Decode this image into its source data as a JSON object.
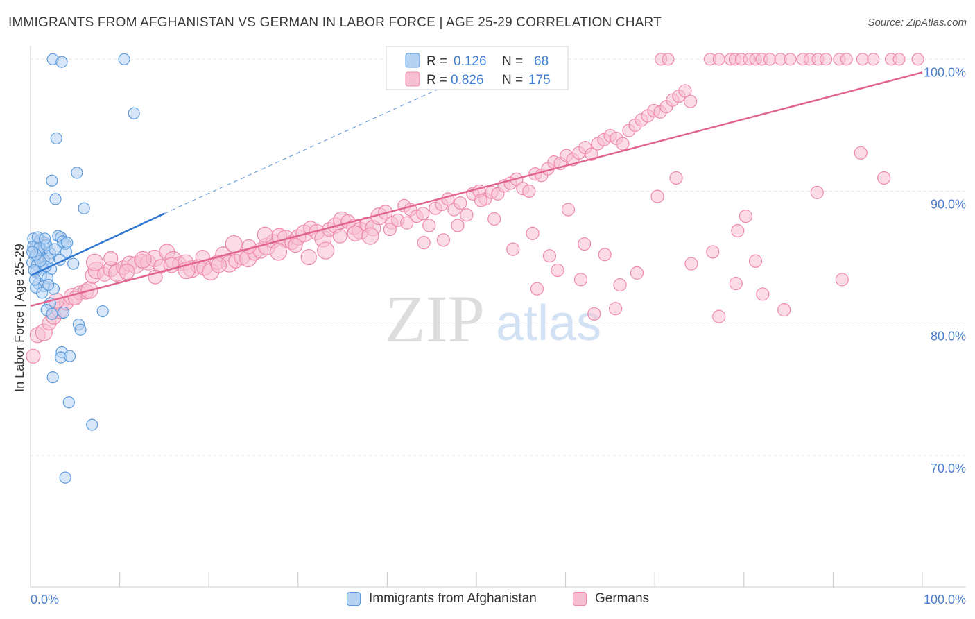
{
  "header": {
    "title": "IMMIGRANTS FROM AFGHANISTAN VS GERMAN IN LABOR FORCE | AGE 25-29 CORRELATION CHART",
    "source": "Source: ZipAtlas.com"
  },
  "watermark": {
    "zip": "ZIP",
    "atlas": "atlas"
  },
  "colors": {
    "blue": "#5b9bdc",
    "blue_fill": "#b6d2f3",
    "blue_line": "#2f76d0",
    "pink": "#ee89a9",
    "pink_fill": "#f7c0d2",
    "pink_line": "#e0648f",
    "tick_label": "#4a7fce",
    "grid": "#e4e4e4"
  },
  "chart_data": {
    "type": "scatter",
    "title": "IMMIGRANTS FROM AFGHANISTAN VS GERMAN IN LABOR FORCE | AGE 25-29 CORRELATION CHART",
    "ylabel": "In Labor Force | Age 25-29",
    "xlabel": "",
    "xlim": [
      0,
      100
    ],
    "ylim": [
      60,
      100.7
    ],
    "x_tick_labels": [
      "0.0%",
      "100.0%"
    ],
    "y_ticks": [
      70,
      80,
      90,
      100
    ],
    "y_tick_labels": [
      "70.0%",
      "80.0%",
      "90.0%",
      "100.0%"
    ],
    "grid": true,
    "legend_position": "top-center",
    "legend": [
      {
        "r_label": "R =",
        "r_value": "0.126",
        "n_label": "N =",
        "n_value": "68"
      },
      {
        "r_label": "R =",
        "r_value": "0.826",
        "n_label": "N =",
        "n_value": "175"
      }
    ],
    "series": [
      {
        "name": "Immigrants from Afghanistan",
        "color": "#5b9bdc",
        "trend": {
          "x": [
            0,
            15,
            100
          ],
          "y": [
            83.6,
            88.3,
            114.4
          ],
          "solid_until": 15
        },
        "points": [
          [
            2.5,
            100
          ],
          [
            3.5,
            99.8
          ],
          [
            10.5,
            100
          ],
          [
            11.6,
            95.9
          ],
          [
            2.9,
            94.0
          ],
          [
            5.2,
            91.4
          ],
          [
            2.4,
            90.8
          ],
          [
            2.8,
            89.4
          ],
          [
            6.0,
            88.7
          ],
          [
            0.3,
            86.4
          ],
          [
            0.8,
            86.0
          ],
          [
            1.1,
            86.3
          ],
          [
            1.6,
            86.1
          ],
          [
            3.1,
            86.6
          ],
          [
            3.4,
            86.5
          ],
          [
            3.6,
            86.2
          ],
          [
            3.9,
            86.0
          ],
          [
            0.4,
            85.6
          ],
          [
            1.0,
            85.4
          ],
          [
            1.3,
            85.5
          ],
          [
            2.2,
            85.3
          ],
          [
            4.0,
            85.4
          ],
          [
            0.5,
            85.1
          ],
          [
            0.9,
            85.0
          ],
          [
            1.5,
            84.8
          ],
          [
            2.0,
            84.9
          ],
          [
            0.2,
            84.6
          ],
          [
            0.7,
            84.4
          ],
          [
            1.4,
            84.2
          ],
          [
            2.3,
            84.1
          ],
          [
            4.8,
            84.5
          ],
          [
            0.6,
            83.9
          ],
          [
            1.2,
            83.6
          ],
          [
            1.9,
            83.4
          ],
          [
            0.9,
            83.0
          ],
          [
            1.5,
            82.8
          ],
          [
            0.6,
            82.7
          ],
          [
            2.6,
            82.6
          ],
          [
            1.3,
            82.3
          ],
          [
            2.2,
            81.5
          ],
          [
            1.8,
            81.0
          ],
          [
            3.7,
            80.8
          ],
          [
            2.4,
            80.7
          ],
          [
            8.1,
            80.9
          ],
          [
            5.4,
            79.9
          ],
          [
            5.6,
            79.5
          ],
          [
            3.5,
            77.8
          ],
          [
            3.4,
            77.4
          ],
          [
            4.4,
            77.5
          ],
          [
            2.5,
            75.9
          ],
          [
            4.3,
            74.0
          ],
          [
            6.9,
            72.3
          ],
          [
            3.9,
            68.3
          ],
          [
            0.3,
            85.8
          ],
          [
            1.0,
            85.7
          ],
          [
            1.8,
            85.9
          ],
          [
            0.4,
            84.0
          ],
          [
            1.7,
            84.3
          ],
          [
            0.8,
            86.5
          ],
          [
            2.7,
            85.6
          ],
          [
            1.1,
            84.7
          ],
          [
            0.5,
            83.3
          ],
          [
            3.3,
            84.8
          ],
          [
            4.1,
            86.1
          ],
          [
            2.0,
            82.9
          ],
          [
            0.6,
            85.2
          ],
          [
            1.6,
            86.4
          ],
          [
            0.2,
            85.4
          ]
        ]
      },
      {
        "name": "Germans",
        "color": "#ee89a9",
        "trend": {
          "x": [
            0,
            100
          ],
          "y": [
            81.3,
            99.0
          ]
        },
        "points": [
          [
            0.3,
            77.5
          ],
          [
            0.8,
            79.1
          ],
          [
            1.5,
            79.3
          ],
          [
            2.1,
            80.0
          ],
          [
            2.6,
            80.5
          ],
          [
            3.3,
            81.0
          ],
          [
            4.0,
            81.5
          ],
          [
            2.9,
            81.7
          ],
          [
            4.7,
            82.0
          ],
          [
            5.5,
            82.3
          ],
          [
            6.2,
            82.4
          ],
          [
            6.6,
            82.5
          ],
          [
            5.0,
            81.9
          ],
          [
            7.0,
            83.6
          ],
          [
            7.4,
            84.0
          ],
          [
            8.3,
            83.7
          ],
          [
            9.0,
            84.1
          ],
          [
            9.7,
            83.8
          ],
          [
            10.4,
            84.2
          ],
          [
            11.1,
            84.5
          ],
          [
            11.8,
            84.4
          ],
          [
            12.5,
            84.7
          ],
          [
            13.2,
            84.6
          ],
          [
            13.9,
            84.9
          ],
          [
            14.6,
            84.3
          ],
          [
            15.3,
            85.4
          ],
          [
            16.0,
            84.8
          ],
          [
            16.7,
            84.5
          ],
          [
            17.4,
            84.6
          ],
          [
            18.1,
            84.1
          ],
          [
            18.8,
            84.3
          ],
          [
            19.5,
            84.2
          ],
          [
            20.2,
            83.9
          ],
          [
            20.9,
            84.6
          ],
          [
            21.6,
            85.2
          ],
          [
            22.3,
            84.5
          ],
          [
            23.0,
            84.7
          ],
          [
            23.7,
            85.0
          ],
          [
            24.4,
            84.9
          ],
          [
            25.1,
            85.3
          ],
          [
            25.8,
            85.5
          ],
          [
            26.5,
            85.8
          ],
          [
            27.2,
            86.2
          ],
          [
            27.9,
            86.6
          ],
          [
            28.6,
            86.4
          ],
          [
            29.3,
            86.1
          ],
          [
            30.0,
            86.5
          ],
          [
            30.7,
            86.8
          ],
          [
            31.4,
            87.2
          ],
          [
            32.1,
            86.9
          ],
          [
            32.8,
            86.4
          ],
          [
            33.5,
            87.1
          ],
          [
            34.2,
            87.4
          ],
          [
            34.9,
            87.8
          ],
          [
            35.6,
            87.7
          ],
          [
            36.3,
            87.3
          ],
          [
            37.0,
            87.0
          ],
          [
            37.7,
            87.5
          ],
          [
            38.4,
            87.2
          ],
          [
            39.1,
            88.1
          ],
          [
            39.8,
            88.4
          ],
          [
            40.5,
            87.6
          ],
          [
            41.2,
            87.8
          ],
          [
            41.9,
            88.9
          ],
          [
            42.6,
            88.6
          ],
          [
            43.3,
            88.1
          ],
          [
            44.0,
            88.3
          ],
          [
            44.7,
            87.4
          ],
          [
            45.4,
            88.7
          ],
          [
            46.1,
            89.0
          ],
          [
            46.8,
            89.4
          ],
          [
            47.5,
            88.6
          ],
          [
            48.2,
            89.1
          ],
          [
            48.9,
            88.2
          ],
          [
            49.6,
            89.8
          ],
          [
            50.3,
            90.0
          ],
          [
            51.0,
            89.4
          ],
          [
            51.7,
            89.9
          ],
          [
            52.4,
            89.8
          ],
          [
            53.1,
            90.4
          ],
          [
            53.8,
            90.6
          ],
          [
            54.5,
            90.9
          ],
          [
            55.2,
            90.2
          ],
          [
            55.9,
            90.0
          ],
          [
            56.6,
            91.3
          ],
          [
            57.3,
            91.2
          ],
          [
            58.0,
            91.7
          ],
          [
            58.7,
            92.2
          ],
          [
            59.4,
            92.1
          ],
          [
            60.1,
            92.7
          ],
          [
            60.8,
            92.4
          ],
          [
            61.5,
            92.9
          ],
          [
            62.2,
            93.3
          ],
          [
            62.9,
            92.8
          ],
          [
            63.6,
            93.6
          ],
          [
            64.3,
            93.9
          ],
          [
            65.0,
            94.2
          ],
          [
            65.7,
            94.0
          ],
          [
            66.4,
            93.6
          ],
          [
            67.1,
            94.6
          ],
          [
            67.8,
            95.0
          ],
          [
            68.5,
            95.4
          ],
          [
            69.2,
            95.7
          ],
          [
            69.9,
            96.1
          ],
          [
            70.6,
            96.0
          ],
          [
            71.3,
            96.4
          ],
          [
            72.0,
            96.9
          ],
          [
            72.7,
            97.2
          ],
          [
            73.4,
            97.6
          ],
          [
            74.0,
            96.8
          ],
          [
            7.2,
            84.6
          ],
          [
            9.0,
            84.9
          ],
          [
            10.8,
            83.9
          ],
          [
            12.6,
            84.8
          ],
          [
            14.0,
            83.5
          ],
          [
            15.8,
            84.4
          ],
          [
            17.5,
            84.0
          ],
          [
            19.3,
            85.0
          ],
          [
            21.1,
            84.4
          ],
          [
            22.8,
            86.0
          ],
          [
            24.5,
            85.8
          ],
          [
            26.3,
            86.7
          ],
          [
            27.8,
            85.4
          ],
          [
            29.7,
            85.9
          ],
          [
            31.2,
            85.0
          ],
          [
            33.1,
            85.5
          ],
          [
            34.7,
            86.6
          ],
          [
            36.4,
            86.8
          ],
          [
            38.1,
            86.6
          ],
          [
            40.3,
            87.1
          ],
          [
            42.2,
            87.6
          ],
          [
            44.1,
            86.1
          ],
          [
            46.3,
            86.3
          ],
          [
            47.9,
            87.4
          ],
          [
            50.5,
            89.3
          ],
          [
            52.0,
            87.9
          ],
          [
            54.1,
            85.6
          ],
          [
            56.3,
            86.8
          ],
          [
            58.2,
            85.1
          ],
          [
            60.3,
            88.6
          ],
          [
            62.1,
            86.0
          ],
          [
            64.4,
            85.2
          ],
          [
            66.1,
            82.9
          ],
          [
            68.0,
            83.8
          ],
          [
            70.3,
            89.6
          ],
          [
            72.4,
            91.0
          ],
          [
            74.1,
            84.5
          ],
          [
            76.5,
            85.4
          ],
          [
            79.3,
            87.0
          ],
          [
            80.2,
            88.1
          ],
          [
            82.1,
            82.2
          ],
          [
            84.5,
            81.0
          ],
          [
            88.2,
            89.9
          ],
          [
            91.0,
            83.3
          ],
          [
            93.1,
            92.9
          ],
          [
            95.7,
            91.0
          ],
          [
            56.8,
            82.6
          ],
          [
            59.1,
            84.0
          ],
          [
            61.7,
            83.3
          ],
          [
            63.2,
            80.7
          ],
          [
            65.6,
            81.1
          ],
          [
            77.2,
            80.5
          ],
          [
            79.1,
            83.0
          ],
          [
            81.3,
            84.7
          ],
          [
            70.7,
            100
          ],
          [
            71.5,
            100
          ],
          [
            76.2,
            100
          ],
          [
            77.2,
            100
          ],
          [
            78.5,
            100
          ],
          [
            79.0,
            100
          ],
          [
            79.7,
            100
          ],
          [
            80.6,
            100
          ],
          [
            81.3,
            100
          ],
          [
            82.0,
            100
          ],
          [
            82.9,
            100
          ],
          [
            84.1,
            100
          ],
          [
            85.2,
            100
          ],
          [
            86.6,
            100
          ],
          [
            87.4,
            100
          ],
          [
            88.3,
            100
          ],
          [
            89.2,
            100
          ],
          [
            90.7,
            100
          ],
          [
            91.5,
            100
          ],
          [
            93.3,
            100
          ],
          [
            94.5,
            100
          ],
          [
            96.5,
            100
          ],
          [
            97.4,
            100
          ],
          [
            99.5,
            100
          ]
        ]
      }
    ]
  }
}
